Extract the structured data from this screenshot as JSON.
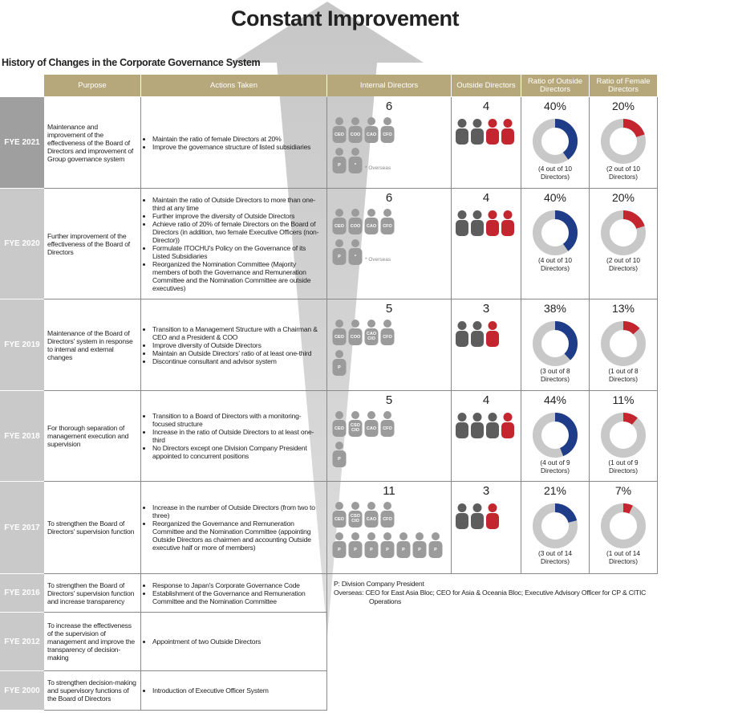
{
  "title": "Constant Improvement",
  "subtitle": "History of Changes in the Corporate Governance System",
  "headers": [
    "Purpose",
    "Actions Taken",
    "Internal Directors",
    "Outside Directors",
    "Ratio of Outside Directors",
    "Ratio of Female Directors"
  ],
  "rows": [
    {
      "year": "FYE 2021",
      "purpose": "Maintenance and improvement of the effectiveness of the Board of Directors and improvement of Group governance system",
      "actions": [
        "Maintain the ratio of female Directors at 20%",
        "Improve the governance structure of listed subsidiaries"
      ],
      "internal": {
        "count": "6",
        "icons": [
          "CEO",
          "COO",
          "CAO",
          "CFO",
          "P",
          "*"
        ],
        "note": "* Overseas"
      },
      "outside": {
        "count": "4",
        "colors": [
          "#5d5d5d",
          "#5d5d5d",
          "#c3262f",
          "#c3262f"
        ]
      },
      "outside_ratio": {
        "value": 40,
        "label": "40%",
        "caption": "(4 out of 10 Directors)"
      },
      "female_ratio": {
        "value": 20,
        "label": "20%",
        "caption": "(2 out of 10 Directors)"
      }
    },
    {
      "year": "FYE 2020",
      "purpose": "Further improvement of the effectiveness of the Board of Directors",
      "actions": [
        "Maintain the ratio of Outside Directors to more than one-third at any time",
        "Further improve the diversity of Outside Directors",
        "Achieve ratio of 20% of female Directors on the Board of Directors (in addition, two female Executive Officers (non-Director))",
        "Formulate ITOCHU's Policy on the Governance of its Listed Subsidiaries",
        "Reorganized the Nomination Committee (Majority members of both the Governance and Remuneration Committee and the Nomination Committee are outside executives)"
      ],
      "internal": {
        "count": "6",
        "icons": [
          "CEO",
          "COO",
          "CAO",
          "CFO",
          "P",
          "*"
        ],
        "note": "* Overseas"
      },
      "outside": {
        "count": "4",
        "colors": [
          "#5d5d5d",
          "#5d5d5d",
          "#c3262f",
          "#c3262f"
        ]
      },
      "outside_ratio": {
        "value": 40,
        "label": "40%",
        "caption": "(4 out of 10 Directors)"
      },
      "female_ratio": {
        "value": 20,
        "label": "20%",
        "caption": "(2 out of 10 Directors)"
      }
    },
    {
      "year": "FYE 2019",
      "purpose": "Maintenance of the Board of Directors' system in response to internal and external changes",
      "actions": [
        "Transition to a Management Structure with a Chairman & CEO and a President & COO",
        "Improve diversity of Outside Directors",
        "Maintain an Outside Directors' ratio of at least one-third",
        "Discontinue consultant and advisor system"
      ],
      "internal": {
        "count": "5",
        "icons": [
          "CEO",
          "COO",
          "CAO CIO",
          "CFO",
          "P"
        ]
      },
      "outside": {
        "count": "3",
        "colors": [
          "#5d5d5d",
          "#5d5d5d",
          "#c3262f"
        ]
      },
      "outside_ratio": {
        "value": 38,
        "label": "38%",
        "caption": "(3 out of 8 Directors)"
      },
      "female_ratio": {
        "value": 13,
        "label": "13%",
        "caption": "(1 out of 8 Directors)"
      }
    },
    {
      "year": "FYE 2018",
      "purpose": "For thorough separation of management execution and supervision",
      "actions": [
        "Transition to a Board of Directors with a monitoring-focused structure",
        "Increase in the ratio of Outside Directors to at least one-third",
        "No Directors except one Division Company President appointed to concurrent positions"
      ],
      "internal": {
        "count": "5",
        "icons": [
          "CEO",
          "CSO CIO",
          "CAO",
          "CFO",
          "P"
        ]
      },
      "outside": {
        "count": "4",
        "colors": [
          "#5d5d5d",
          "#5d5d5d",
          "#5d5d5d",
          "#c3262f"
        ]
      },
      "outside_ratio": {
        "value": 44,
        "label": "44%",
        "caption": "(4 out of 9 Directors)"
      },
      "female_ratio": {
        "value": 11,
        "label": "11%",
        "caption": "(1 out of 9 Directors)"
      }
    },
    {
      "year": "FYE 2017",
      "purpose": "To strengthen the Board of Directors' supervision function",
      "actions": [
        "Increase in the number of Outside Directors (from two to three)",
        "Reorganized the Governance and Remuneration Committee and the Nomination Committee (appointing Outside Directors as chairmen and accounting Outside executive half or more of members)"
      ],
      "internal": {
        "count": "11",
        "icons": [
          "CEO",
          "CSO CIO",
          "CAO",
          "CFO",
          "P",
          "P",
          "P",
          "P",
          "P",
          "P",
          "P"
        ]
      },
      "outside": {
        "count": "3",
        "colors": [
          "#5d5d5d",
          "#5d5d5d",
          "#c3262f"
        ]
      },
      "outside_ratio": {
        "value": 21,
        "label": "21%",
        "caption": "(3 out of 14 Directors)"
      },
      "female_ratio": {
        "value": 7,
        "label": "7%",
        "caption": "(1 out of 14 Directors)"
      }
    },
    {
      "year": "FYE 2016",
      "purpose": "To strengthen the Board of Directors' supervision function and increase transparency",
      "actions": [
        "Response to Japan's Corporate Governance Code",
        "Establishment of the Governance and Remuneration Committee and the Nomination Committee"
      ]
    },
    {
      "year": "FYE 2012",
      "purpose": "To increase the effectiveness of the supervision of management and improve the transparency of decision-making",
      "actions": [
        "Appointment of two Outside Directors"
      ]
    },
    {
      "year": "FYE 2000",
      "purpose": "To strengthen decision-making and supervisory functions of the Board of Directors",
      "actions": [
        "Introduction of Executive Officer System"
      ]
    }
  ],
  "legend": [
    "P: Division Company President",
    "Overseas: CEO for East Asia Bloc; CEO for Asia & Oceania Bloc; Executive Advisory Officer for CP & CITIC Operations"
  ]
}
